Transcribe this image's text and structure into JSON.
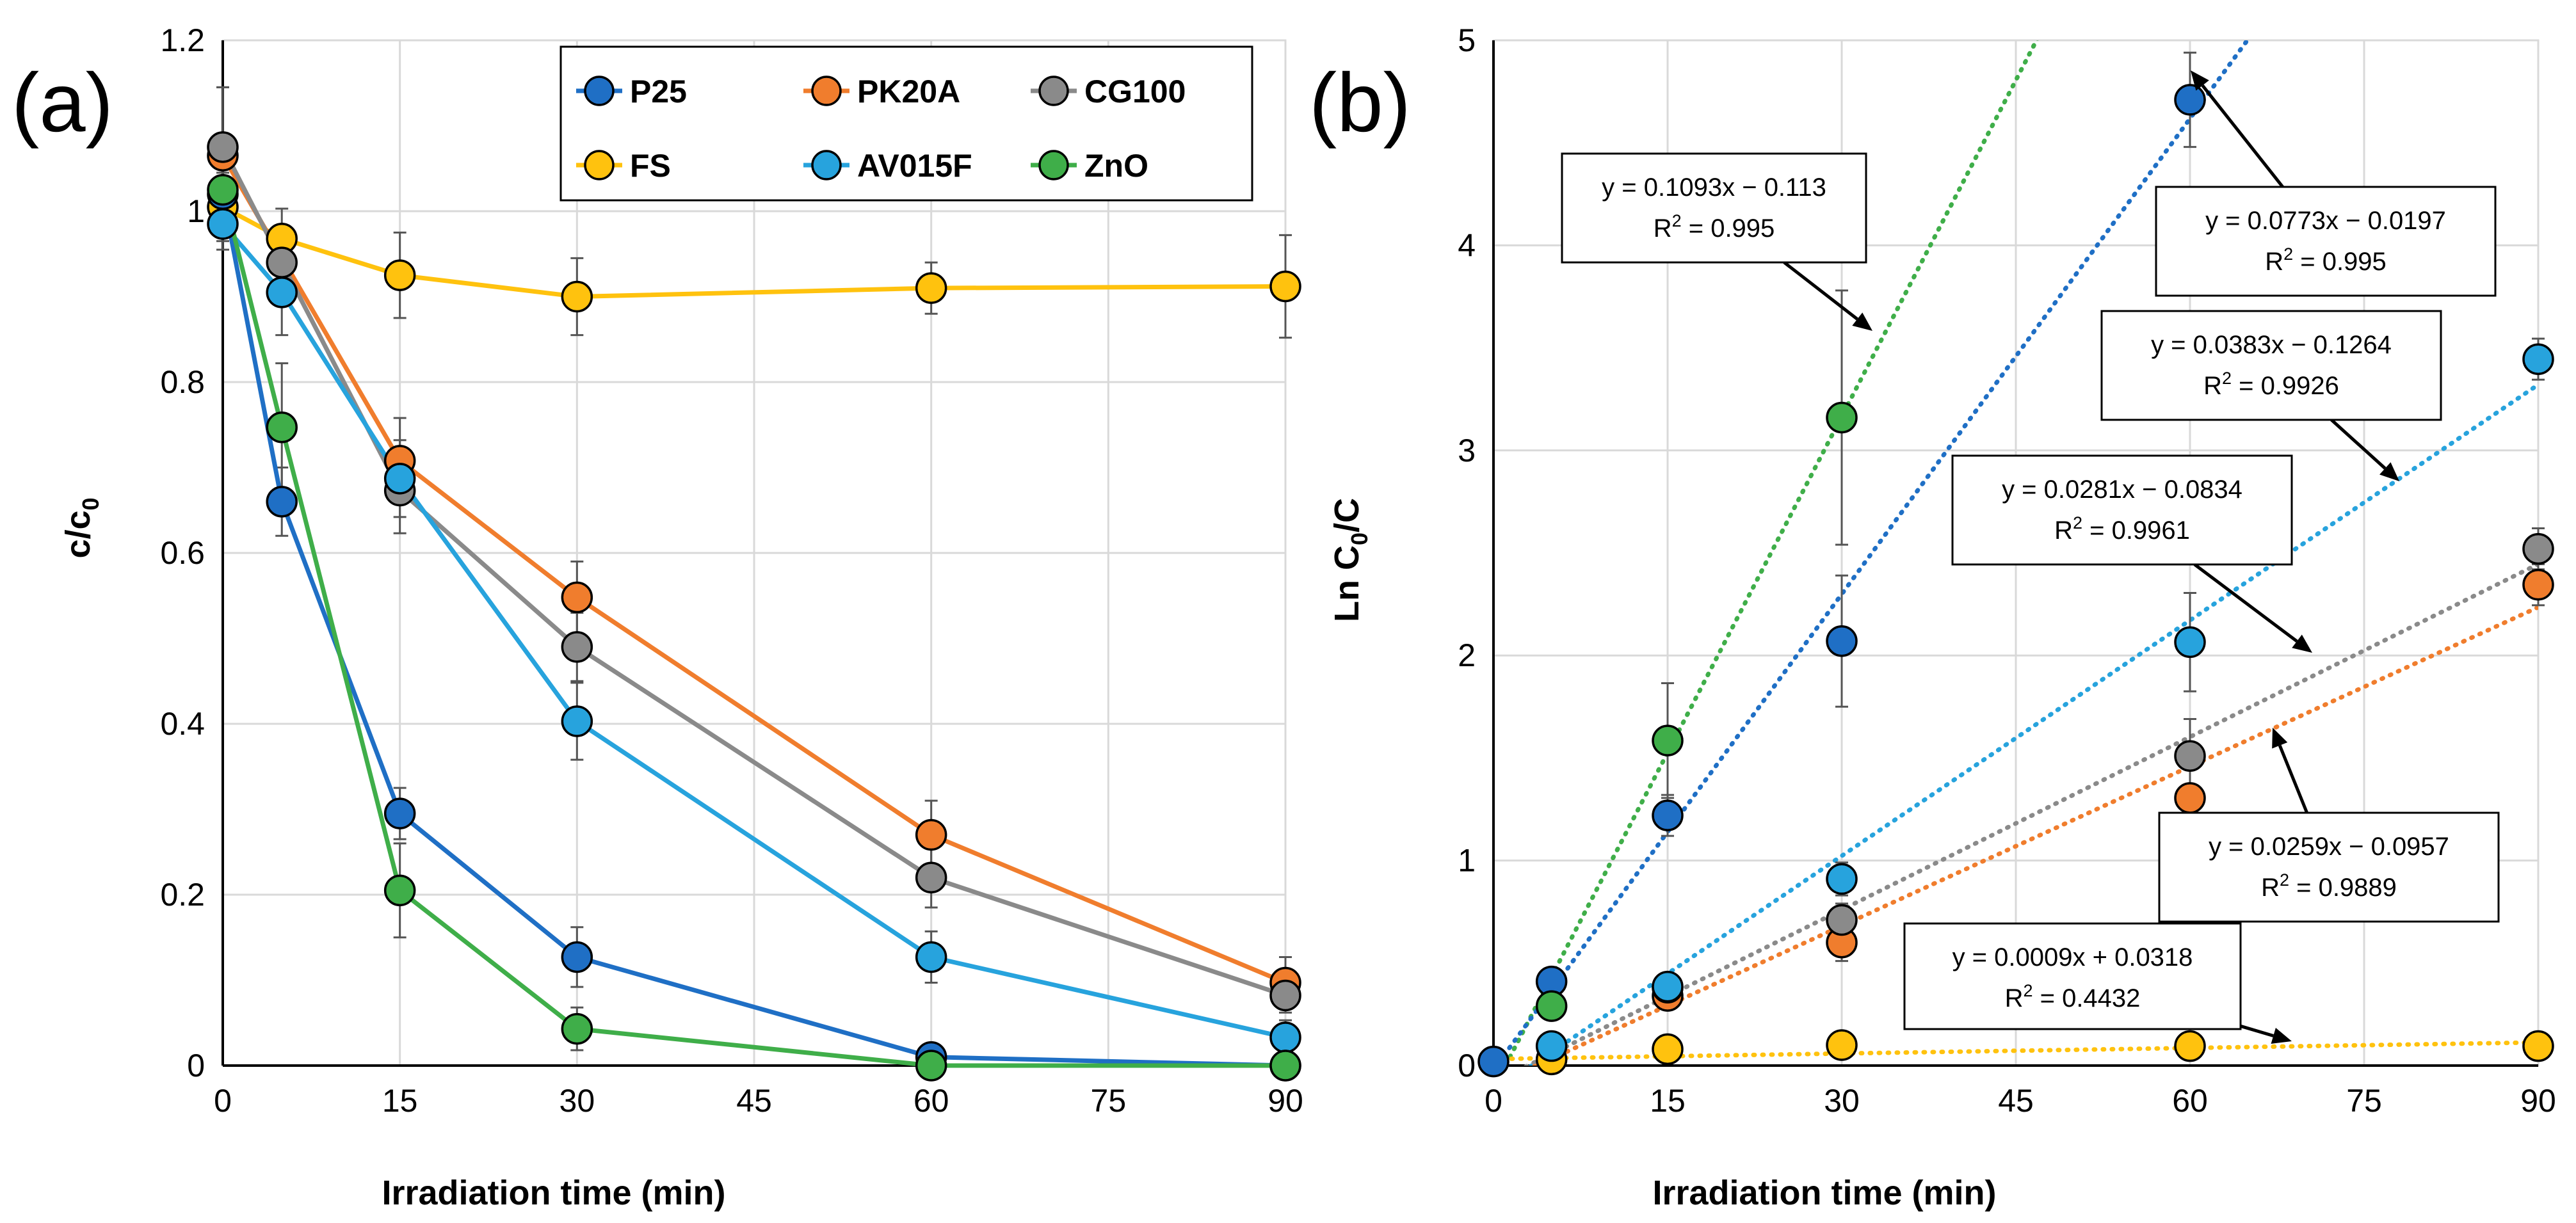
{
  "chart_data": [
    {
      "panel_label": "(a)",
      "type": "line",
      "xlabel": "Irradiation time (min)",
      "ylabel": "c/c0",
      "ylabel_main": "c/c",
      "ylabel_sub": "0",
      "xlim": [
        0,
        90
      ],
      "ylim": [
        0,
        1.2
      ],
      "x_ticks": [
        0,
        15,
        30,
        45,
        60,
        75,
        90
      ],
      "y_ticks": [
        0,
        0.2,
        0.4,
        0.6,
        0.8,
        1,
        1.2
      ],
      "x_tick_labels": [
        "0",
        "15",
        "30",
        "45",
        "60",
        "75",
        "90"
      ],
      "y_tick_labels": [
        "0",
        "0.2",
        "0.4",
        "0.6",
        "0.8",
        "1",
        "1.2"
      ],
      "grid": true,
      "legend_position": "top-right",
      "series": [
        {
          "name": "P25",
          "color": "#1f6fc5",
          "x": [
            0,
            5,
            15,
            30,
            60,
            90
          ],
          "y": [
            1.02,
            0.66,
            0.295,
            0.127,
            0.01,
            0.0
          ],
          "err": [
            0.03,
            0.04,
            0.03,
            0.035,
            0.008,
            0.0
          ]
        },
        {
          "name": "PK20A",
          "color": "#f07d2d",
          "x": [
            0,
            15,
            30,
            60,
            90
          ],
          "y": [
            1.065,
            0.708,
            0.548,
            0.27,
            0.097
          ],
          "err": [
            0.08,
            0.05,
            0.042,
            0.04,
            0.03
          ]
        },
        {
          "name": "CG100",
          "color": "#8a8a8a",
          "x": [
            0,
            5,
            15,
            30,
            60,
            90
          ],
          "y": [
            1.075,
            0.94,
            0.673,
            0.49,
            0.22,
            0.082
          ],
          "err": [
            0.07,
            0.04,
            0.05,
            0.04,
            0.035,
            0.02
          ]
        },
        {
          "name": "FS",
          "color": "#ffc20e",
          "x": [
            0,
            5,
            15,
            30,
            60,
            90
          ],
          "y": [
            1.005,
            0.968,
            0.925,
            0.9,
            0.91,
            0.912
          ],
          "err": [
            0.04,
            0.035,
            0.05,
            0.045,
            0.03,
            0.06
          ]
        },
        {
          "name": "AV015F",
          "color": "#27a3dd",
          "x": [
            0,
            5,
            15,
            30,
            60,
            90
          ],
          "y": [
            0.985,
            0.905,
            0.687,
            0.403,
            0.127,
            0.033
          ],
          "err": [
            0.03,
            0.05,
            0.045,
            0.045,
            0.03,
            0.02
          ]
        },
        {
          "name": "ZnO",
          "color": "#3fae49",
          "x": [
            0,
            5,
            15,
            30,
            60,
            90
          ],
          "y": [
            1.025,
            0.747,
            0.205,
            0.043,
            0.0,
            0.0
          ],
          "err": [
            0.04,
            0.075,
            0.055,
            0.025,
            0.0,
            0.0
          ]
        }
      ]
    },
    {
      "panel_label": "(b)",
      "type": "scatter",
      "xlabel": "Irradiation time (min)",
      "ylabel": "Ln C0/C",
      "ylabel_main_a": "Ln C",
      "ylabel_sub": "0",
      "ylabel_main_b": "/C",
      "xlim": [
        0,
        90
      ],
      "ylim": [
        0,
        5
      ],
      "x_ticks": [
        0,
        15,
        30,
        45,
        60,
        75,
        90
      ],
      "y_ticks": [
        0,
        1,
        2,
        3,
        4,
        5
      ],
      "x_tick_labels": [
        "0",
        "15",
        "30",
        "45",
        "60",
        "75",
        "90"
      ],
      "y_tick_labels": [
        "0",
        "1",
        "2",
        "3",
        "4",
        "5"
      ],
      "grid": true,
      "series": [
        {
          "name": "ZnO",
          "color": "#3fae49",
          "x": [
            5,
            15,
            30
          ],
          "y": [
            0.29,
            1.585,
            3.16
          ],
          "err": [
            0.05,
            0.28,
            0.62
          ],
          "fit": {
            "slope": 0.1093,
            "intercept": -0.113
          },
          "equation": "y = 0.1093x − 0.113",
          "r2_label": "R",
          "r2_value": " = 0.995"
        },
        {
          "name": "P25",
          "color": "#1f6fc5",
          "x": [
            0,
            5,
            15,
            30,
            60
          ],
          "y": [
            0.02,
            0.41,
            1.22,
            2.07,
            4.71
          ],
          "err": [
            0.0,
            0.05,
            0.1,
            0.32,
            0.23
          ],
          "fit": {
            "slope": 0.0773,
            "intercept": -0.0197
          },
          "equation": "y = 0.0773x − 0.0197",
          "r2_label": "R",
          "r2_value": " = 0.995"
        },
        {
          "name": "AV015F",
          "color": "#27a3dd",
          "x": [
            5,
            15,
            30,
            60,
            90
          ],
          "y": [
            0.095,
            0.385,
            0.91,
            2.065,
            3.445
          ],
          "err": [
            0.04,
            0.06,
            0.08,
            0.24,
            0.1
          ],
          "fit": {
            "slope": 0.0383,
            "intercept": -0.1264
          },
          "equation": "y = 0.0383x − 0.1264",
          "r2_label": "R",
          "r2_value": " = 0.9926"
        },
        {
          "name": "CG100",
          "color": "#8a8a8a",
          "x": [
            15,
            30,
            60,
            90
          ],
          "y": [
            0.38,
            0.71,
            1.51,
            2.52
          ],
          "err": [
            0.05,
            0.08,
            0.18,
            0.1
          ],
          "fit": {
            "slope": 0.0281,
            "intercept": -0.0834
          },
          "equation": "y = 0.0281x − 0.0834",
          "r2_label": "R",
          "r2_value": " = 0.9961"
        },
        {
          "name": "PK20A",
          "color": "#f07d2d",
          "x": [
            15,
            30,
            60,
            90
          ],
          "y": [
            0.34,
            0.6,
            1.305,
            2.345
          ],
          "err": [
            0.05,
            0.09,
            0.15,
            0.1
          ],
          "fit": {
            "slope": 0.0259,
            "intercept": -0.0957
          },
          "equation": "y = 0.0259x − 0.0957",
          "r2_label": "R",
          "r2_value": " = 0.9889"
        },
        {
          "name": "FS",
          "color": "#ffc20e",
          "x": [
            5,
            15,
            30,
            60,
            90
          ],
          "y": [
            0.03,
            0.08,
            0.1,
            0.095,
            0.095
          ],
          "err": [
            0.02,
            0.02,
            0.02,
            0.02,
            0.02
          ],
          "fit": {
            "slope": 0.0009,
            "intercept": 0.0318
          },
          "equation": "y = 0.0009x + 0.0318",
          "r2_label": "R",
          "r2_value": " = 0.4432"
        }
      ]
    }
  ]
}
